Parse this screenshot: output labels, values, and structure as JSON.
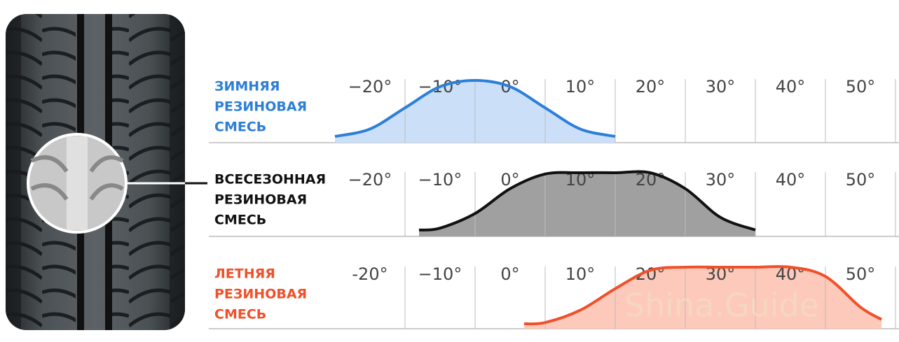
{
  "watermark": "Shina.Guide",
  "chart_data": [
    {
      "type": "area",
      "title": [
        "ЗИМНЯЯ",
        "РЕЗИНОВАЯ",
        "СМЕСЬ"
      ],
      "color": "#2c7fd8",
      "fill": "#cbe0f8",
      "x": [
        -25,
        -20,
        -15,
        -10,
        -5,
        0,
        5,
        10,
        15
      ],
      "values": [
        0.1,
        0.22,
        0.56,
        0.9,
        1,
        0.9,
        0.56,
        0.22,
        0.1
      ],
      "xlim": [
        -25,
        55
      ],
      "ylim": [
        0,
        1
      ],
      "xticks": [
        {
          "value": -20,
          "label": "−20°"
        },
        {
          "value": -10,
          "label": "−10°"
        },
        {
          "value": 0,
          "label": "0°"
        },
        {
          "value": 10,
          "label": "10°"
        },
        {
          "value": 20,
          "label": "20°"
        },
        {
          "value": 30,
          "label": "30°"
        },
        {
          "value": 40,
          "label": "40°"
        },
        {
          "value": 50,
          "label": "50°"
        }
      ]
    },
    {
      "type": "area",
      "title": [
        "ВСЕСЕЗОННАЯ",
        "РЕЗИНОВАЯ",
        "СМЕСЬ"
      ],
      "color": "#111111",
      "fill": "#a0a0a0",
      "x": [
        -13,
        -10,
        -5,
        0,
        5,
        10,
        15,
        20,
        25,
        30,
        35
      ],
      "values": [
        0.1,
        0.13,
        0.36,
        0.75,
        0.98,
        1,
        1,
        1,
        0.75,
        0.3,
        0.1
      ],
      "xlim": [
        -25,
        55
      ],
      "ylim": [
        0,
        1
      ],
      "xticks": [
        {
          "value": -20,
          "label": "−20°"
        },
        {
          "value": -10,
          "label": "−10°"
        },
        {
          "value": 0,
          "label": "0°"
        },
        {
          "value": 10,
          "label": "10°"
        },
        {
          "value": 20,
          "label": "20°"
        },
        {
          "value": 30,
          "label": "30°"
        },
        {
          "value": 40,
          "label": "40°"
        },
        {
          "value": 50,
          "label": "50°"
        }
      ]
    },
    {
      "type": "area",
      "title": [
        "ЛЕТНЯЯ",
        "РЕЗИНОВАЯ",
        "СМЕСЬ"
      ],
      "color": "#f0502a",
      "fill": "#fcc9ba",
      "x": [
        2,
        5,
        10,
        15,
        20,
        25,
        30,
        35,
        40,
        45,
        50,
        53
      ],
      "values": [
        0.08,
        0.1,
        0.3,
        0.65,
        0.95,
        1,
        1,
        1,
        1,
        0.85,
        0.35,
        0.15
      ],
      "xlim": [
        -25,
        55
      ],
      "ylim": [
        0,
        1
      ],
      "xticks": [
        {
          "value": -20,
          "label": "-20°"
        },
        {
          "value": -10,
          "label": "−10°"
        },
        {
          "value": 0,
          "label": "0°"
        },
        {
          "value": 10,
          "label": "10°"
        },
        {
          "value": 20,
          "label": "20°"
        },
        {
          "value": 30,
          "label": "30°"
        },
        {
          "value": 40,
          "label": "40°"
        },
        {
          "value": 50,
          "label": "50°"
        }
      ]
    }
  ]
}
